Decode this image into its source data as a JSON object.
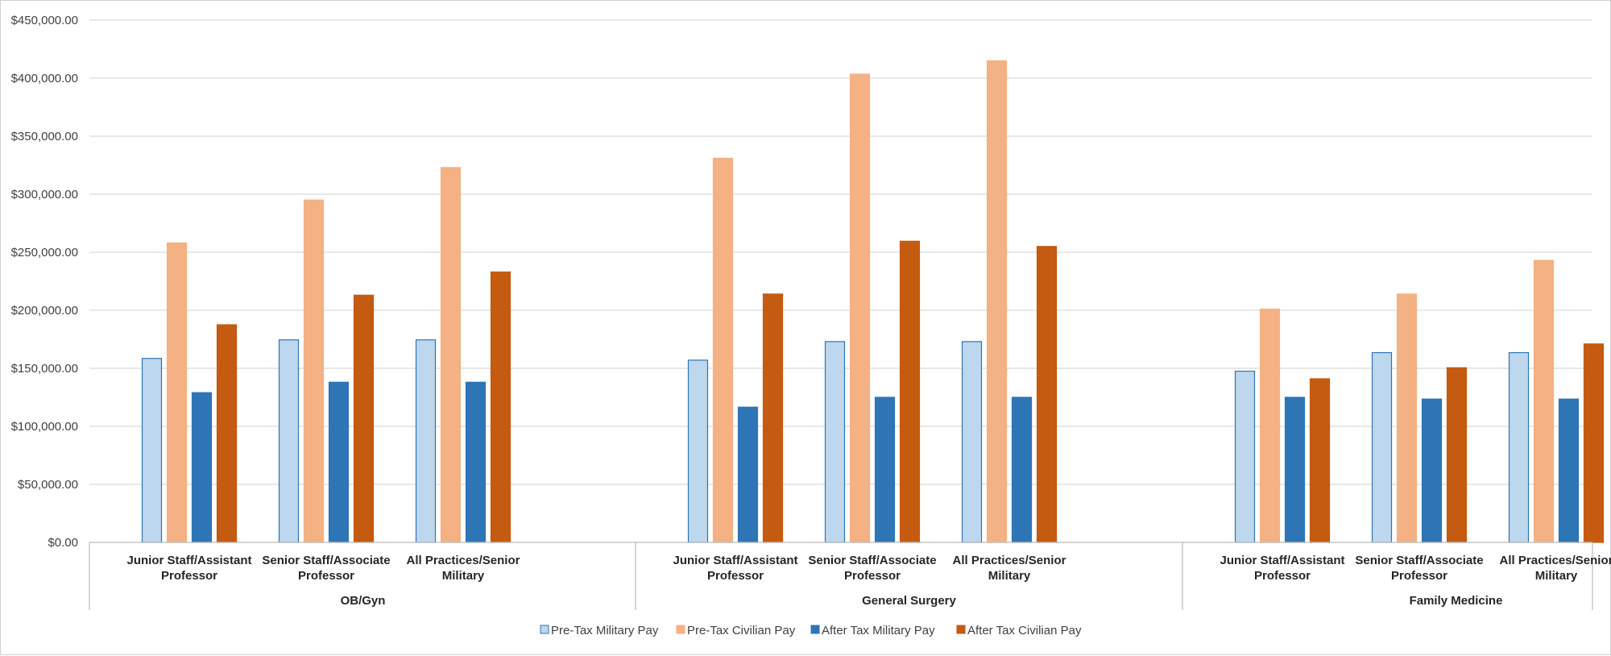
{
  "chart_data": {
    "type": "bar",
    "title": "",
    "xlabel": "",
    "ylabel": "",
    "ylim": [
      0,
      450000
    ],
    "yticks": [
      0,
      50000,
      100000,
      150000,
      200000,
      250000,
      300000,
      350000,
      400000,
      450000
    ],
    "ytick_labels": [
      "$0.00",
      "$50,000.00",
      "$100,000.00",
      "$150,000.00",
      "$200,000.00",
      "$250,000.00",
      "$300,000.00",
      "$350,000.00",
      "$400,000.00",
      "$450,000.00"
    ],
    "grid": true,
    "legend_position": "bottom",
    "groups": [
      {
        "name": "OB/Gyn",
        "categories": [
          [
            "Junior Staff/Assistant",
            "Professor"
          ],
          [
            "Senior Staff/Associate",
            "Professor"
          ],
          [
            "All Practices/Senior",
            "Military"
          ]
        ]
      },
      {
        "name": "General Surgery",
        "categories": [
          [
            "Junior Staff/Assistant",
            "Professor"
          ],
          [
            "Senior Staff/Associate",
            "Professor"
          ],
          [
            "All Practices/Senior",
            "Military"
          ]
        ]
      },
      {
        "name": "Family Medicine",
        "categories": [
          [
            "Junior Staff/Assistant",
            "Professor"
          ],
          [
            "Senior Staff/Associate",
            "Professor"
          ],
          [
            "All Practices/Senior",
            "Military"
          ]
        ]
      }
    ],
    "series": [
      {
        "name": "Pre-Tax Military Pay",
        "color": "#bdd7ee",
        "stroke": "#2e75b6",
        "values": [
          158500,
          174500,
          174500,
          157000,
          173000,
          173000,
          147500,
          163500,
          163500
        ]
      },
      {
        "name": "Pre-Tax Civilian Pay",
        "color": "#f4b183",
        "stroke": "#f4b183",
        "values": [
          258000,
          295000,
          323000,
          331000,
          403500,
          415000,
          201000,
          214000,
          243000
        ]
      },
      {
        "name": "After Tax Military Pay",
        "color": "#2e75b6",
        "stroke": "#2e75b6",
        "values": [
          129000,
          138000,
          138000,
          116500,
          125000,
          125000,
          125000,
          123500,
          123500
        ]
      },
      {
        "name": "After Tax Civilian Pay",
        "color": "#c55a11",
        "stroke": "#c55a11",
        "values": [
          187500,
          213000,
          233000,
          214000,
          259500,
          255000,
          141000,
          150500,
          171000
        ]
      }
    ]
  }
}
